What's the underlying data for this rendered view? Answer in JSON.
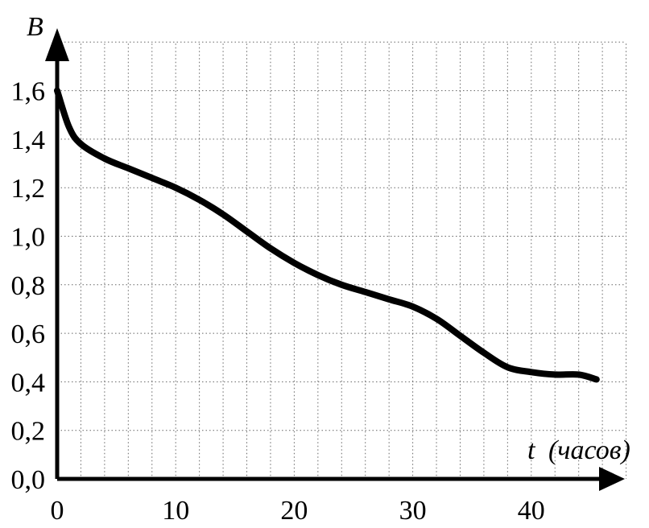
{
  "chart_data": {
    "type": "line",
    "xlabel_symbol": "t",
    "xlabel_unit": "(часов)",
    "ylabel": "B",
    "x_ticks": [
      "0",
      "10",
      "20",
      "30",
      "40"
    ],
    "y_ticks": [
      "0,0",
      "0,2",
      "0,4",
      "0,6",
      "0,8",
      "1,0",
      "1,2",
      "1,4",
      "1,6"
    ],
    "xlim": [
      0,
      48
    ],
    "ylim": [
      0,
      1.8
    ],
    "x_grid_step": 2,
    "y_grid_step": 0.2,
    "grid": true,
    "series": [
      {
        "x": [
          0,
          1,
          2,
          4,
          6,
          8,
          10,
          12,
          14,
          16,
          18,
          20,
          22,
          24,
          26,
          28,
          30,
          32,
          34,
          36,
          38,
          40,
          42,
          44,
          45.5
        ],
        "values": [
          1.6,
          1.45,
          1.38,
          1.32,
          1.28,
          1.24,
          1.2,
          1.15,
          1.09,
          1.02,
          0.95,
          0.89,
          0.84,
          0.8,
          0.77,
          0.74,
          0.71,
          0.66,
          0.59,
          0.52,
          0.46,
          0.44,
          0.43,
          0.43,
          0.41
        ]
      }
    ],
    "colors": {
      "line": "#000000",
      "grid": "#666666",
      "axis": "#000000"
    }
  }
}
